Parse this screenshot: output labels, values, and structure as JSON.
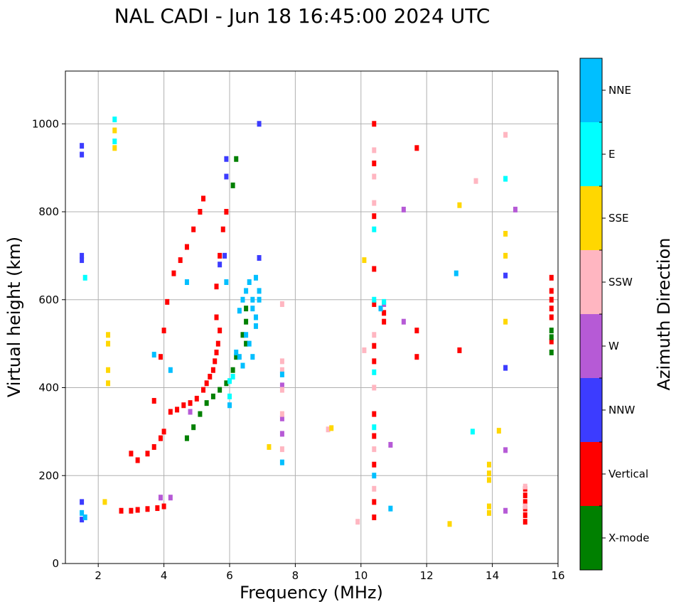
{
  "chart_data": {
    "type": "scatter",
    "title": "NAL CADI - Jun 18 16:45:00 2024 UTC",
    "xlabel": "Frequency (MHz)",
    "ylabel": "Virtual height (km)",
    "xlim": [
      1,
      16
    ],
    "ylim": [
      0,
      1120
    ],
    "xticks": [
      2,
      4,
      6,
      8,
      10,
      12,
      14,
      16
    ],
    "yticks": [
      0,
      200,
      400,
      600,
      800,
      1000
    ],
    "grid": true,
    "colorbar": {
      "label": "Azimuth Direction",
      "categories": [
        {
          "name": "X-mode",
          "color": "#008000"
        },
        {
          "name": "Vertical",
          "color": "#ff0000"
        },
        {
          "name": "NNW",
          "color": "#3c3cff"
        },
        {
          "name": "W",
          "color": "#b65ad6"
        },
        {
          "name": "SSW",
          "color": "#ffb6c1"
        },
        {
          "name": "SSE",
          "color": "#ffd700"
        },
        {
          "name": "E",
          "color": "#00ffff"
        },
        {
          "name": "NNE",
          "color": "#00bfff"
        }
      ]
    },
    "series": [
      {
        "name": "Vertical",
        "color": "#ff0000",
        "points": [
          [
            2.7,
            120
          ],
          [
            3.0,
            120
          ],
          [
            3.2,
            122
          ],
          [
            3.5,
            124
          ],
          [
            3.8,
            126
          ],
          [
            4.0,
            130
          ],
          [
            4.2,
            345
          ],
          [
            4.4,
            350
          ],
          [
            4.6,
            360
          ],
          [
            4.8,
            365
          ],
          [
            5.0,
            375
          ],
          [
            5.2,
            395
          ],
          [
            5.3,
            410
          ],
          [
            5.4,
            425
          ],
          [
            5.5,
            440
          ],
          [
            5.55,
            460
          ],
          [
            5.6,
            480
          ],
          [
            5.65,
            500
          ],
          [
            5.7,
            530
          ],
          [
            3.0,
            250
          ],
          [
            3.2,
            235
          ],
          [
            3.5,
            250
          ],
          [
            3.7,
            265
          ],
          [
            3.9,
            285
          ],
          [
            4.0,
            300
          ],
          [
            3.7,
            370
          ],
          [
            3.9,
            470
          ],
          [
            4.0,
            530
          ],
          [
            4.1,
            595
          ],
          [
            4.3,
            660
          ],
          [
            4.5,
            690
          ],
          [
            4.7,
            720
          ],
          [
            4.9,
            760
          ],
          [
            5.1,
            800
          ],
          [
            5.2,
            830
          ],
          [
            5.6,
            630
          ],
          [
            5.7,
            700
          ],
          [
            5.8,
            760
          ],
          [
            5.9,
            800
          ],
          [
            5.6,
            560
          ],
          [
            10.4,
            1000
          ],
          [
            10.4,
            910
          ],
          [
            10.4,
            790
          ],
          [
            10.4,
            670
          ],
          [
            10.4,
            590
          ],
          [
            10.4,
            495
          ],
          [
            10.4,
            460
          ],
          [
            10.4,
            340
          ],
          [
            10.4,
            290
          ],
          [
            10.4,
            225
          ],
          [
            10.4,
            140
          ],
          [
            10.4,
            105
          ],
          [
            10.7,
            570
          ],
          [
            10.7,
            550
          ],
          [
            11.7,
            945
          ],
          [
            11.7,
            530
          ],
          [
            11.7,
            470
          ],
          [
            13.0,
            485
          ],
          [
            15.0,
            170
          ],
          [
            15.0,
            155
          ],
          [
            15.0,
            140
          ],
          [
            15.0,
            125
          ],
          [
            15.0,
            110
          ],
          [
            15.0,
            95
          ],
          [
            15.8,
            650
          ],
          [
            15.8,
            620
          ],
          [
            15.8,
            600
          ],
          [
            15.8,
            580
          ],
          [
            15.8,
            560
          ],
          [
            15.8,
            505
          ]
        ]
      },
      {
        "name": "X-mode",
        "color": "#008000",
        "points": [
          [
            4.7,
            285
          ],
          [
            4.9,
            310
          ],
          [
            5.1,
            340
          ],
          [
            5.3,
            365
          ],
          [
            5.5,
            380
          ],
          [
            5.7,
            395
          ],
          [
            5.9,
            410
          ],
          [
            6.1,
            440
          ],
          [
            6.2,
            470
          ],
          [
            6.4,
            520
          ],
          [
            6.5,
            580
          ],
          [
            6.5,
            550
          ],
          [
            6.5,
            500
          ],
          [
            6.2,
            920
          ],
          [
            6.1,
            860
          ],
          [
            15.8,
            480
          ],
          [
            15.8,
            515
          ],
          [
            15.8,
            530
          ]
        ]
      },
      {
        "name": "NNW",
        "color": "#3c3cff",
        "points": [
          [
            1.5,
            950
          ],
          [
            1.5,
            930
          ],
          [
            1.5,
            700
          ],
          [
            1.5,
            690
          ],
          [
            1.5,
            140
          ],
          [
            1.5,
            100
          ],
          [
            5.9,
            880
          ],
          [
            5.9,
            920
          ],
          [
            5.85,
            700
          ],
          [
            5.7,
            680
          ],
          [
            6.9,
            1000
          ],
          [
            6.9,
            695
          ],
          [
            14.4,
            655
          ],
          [
            14.4,
            445
          ]
        ]
      },
      {
        "name": "W",
        "color": "#b65ad6",
        "points": [
          [
            4.2,
            150
          ],
          [
            3.9,
            150
          ],
          [
            4.8,
            345
          ],
          [
            7.6,
            405
          ],
          [
            7.6,
            330
          ],
          [
            7.6,
            295
          ],
          [
            10.7,
            590
          ],
          [
            10.9,
            270
          ],
          [
            11.3,
            550
          ],
          [
            11.3,
            805
          ],
          [
            14.7,
            805
          ],
          [
            14.4,
            258
          ],
          [
            14.4,
            120
          ]
        ]
      },
      {
        "name": "SSW",
        "color": "#ffb6c1",
        "points": [
          [
            7.6,
            460
          ],
          [
            7.6,
            440
          ],
          [
            7.6,
            395
          ],
          [
            7.6,
            340
          ],
          [
            7.6,
            260
          ],
          [
            7.6,
            590
          ],
          [
            9.9,
            95
          ],
          [
            10.1,
            485
          ],
          [
            10.4,
            940
          ],
          [
            10.4,
            880
          ],
          [
            10.4,
            820
          ],
          [
            10.4,
            520
          ],
          [
            10.4,
            400
          ],
          [
            10.4,
            260
          ],
          [
            10.4,
            170
          ],
          [
            13.5,
            870
          ],
          [
            14.4,
            975
          ],
          [
            15.0,
            175
          ],
          [
            15.0,
            130
          ],
          [
            9.0,
            305
          ]
        ]
      },
      {
        "name": "SSE",
        "color": "#ffd700",
        "points": [
          [
            2.3,
            520
          ],
          [
            2.3,
            500
          ],
          [
            2.3,
            440
          ],
          [
            2.3,
            410
          ],
          [
            2.5,
            945
          ],
          [
            2.5,
            985
          ],
          [
            2.2,
            140
          ],
          [
            7.2,
            265
          ],
          [
            9.1,
            308
          ],
          [
            10.1,
            690
          ],
          [
            12.7,
            90
          ],
          [
            13.0,
            815
          ],
          [
            13.9,
            225
          ],
          [
            13.9,
            205
          ],
          [
            13.9,
            190
          ],
          [
            13.9,
            130
          ],
          [
            13.9,
            115
          ],
          [
            14.4,
            750
          ],
          [
            14.4,
            700
          ],
          [
            14.4,
            550
          ],
          [
            14.2,
            302
          ]
        ]
      },
      {
        "name": "E",
        "color": "#00ffff",
        "points": [
          [
            1.6,
            650
          ],
          [
            2.5,
            1010
          ],
          [
            2.5,
            960
          ],
          [
            10.4,
            760
          ],
          [
            10.4,
            600
          ],
          [
            10.4,
            435
          ],
          [
            10.4,
            310
          ],
          [
            10.7,
            595
          ],
          [
            13.4,
            300
          ],
          [
            14.4,
            875
          ],
          [
            6.0,
            380
          ],
          [
            6.0,
            415
          ],
          [
            6.1,
            425
          ]
        ]
      },
      {
        "name": "NNE",
        "color": "#00bfff",
        "points": [
          [
            1.5,
            115
          ],
          [
            1.6,
            105
          ],
          [
            3.7,
            475
          ],
          [
            4.2,
            440
          ],
          [
            4.7,
            640
          ],
          [
            5.9,
            640
          ],
          [
            6.0,
            360
          ],
          [
            6.2,
            480
          ],
          [
            6.3,
            470
          ],
          [
            6.4,
            450
          ],
          [
            6.4,
            600
          ],
          [
            6.5,
            620
          ],
          [
            6.6,
            640
          ],
          [
            6.7,
            600
          ],
          [
            6.7,
            580
          ],
          [
            6.8,
            560
          ],
          [
            6.8,
            540
          ],
          [
            6.8,
            650
          ],
          [
            6.9,
            620
          ],
          [
            6.9,
            600
          ],
          [
            6.3,
            575
          ],
          [
            6.5,
            520
          ],
          [
            6.6,
            500
          ],
          [
            6.7,
            470
          ],
          [
            7.6,
            430
          ],
          [
            7.6,
            230
          ],
          [
            10.4,
            200
          ],
          [
            10.6,
            580
          ],
          [
            10.9,
            125
          ],
          [
            12.9,
            660
          ]
        ]
      }
    ]
  }
}
